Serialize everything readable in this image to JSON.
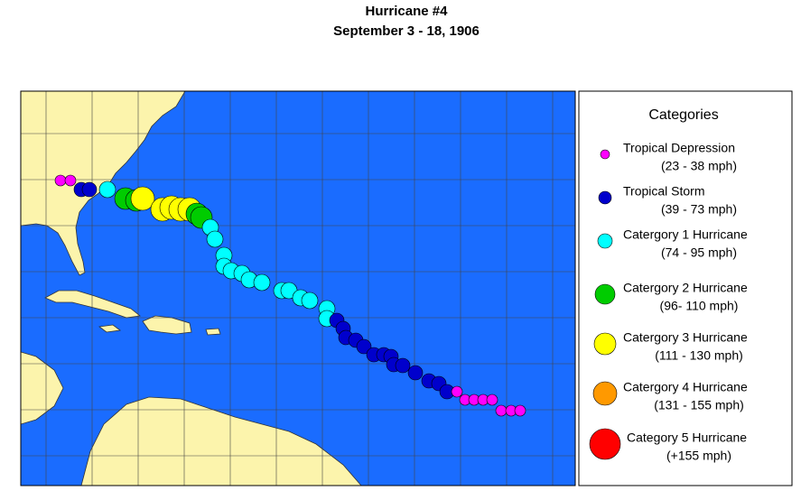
{
  "title": "Hurricane #4",
  "subtitle": "September 3 - 18, 1906",
  "legend": {
    "title": "Categories",
    "items": [
      {
        "name": "Tropical Depression",
        "range": "(23 - 38 mph)",
        "color": "#ff00ff"
      },
      {
        "name": "Tropical Storm",
        "range": "(39 - 73 mph)",
        "color": "#0000cc"
      },
      {
        "name": "Catergory 1 Hurricane",
        "range": "(74 - 95 mph)",
        "color": "#00ffff"
      },
      {
        "name": "Catergory 2 Hurricane",
        "range": "(96- 110 mph)",
        "color": "#00cc00"
      },
      {
        "name": "Catergory 3 Hurricane",
        "range": "(111 - 130 mph)",
        "color": "#ffff00"
      },
      {
        "name": "Catergory 4 Hurricane",
        "range": "(131 - 155 mph)",
        "color": "#ff9900"
      },
      {
        "name": "Category 5 Hurricane",
        "range": "(+155 mph)",
        "color": "#ff0000"
      }
    ]
  }
}
